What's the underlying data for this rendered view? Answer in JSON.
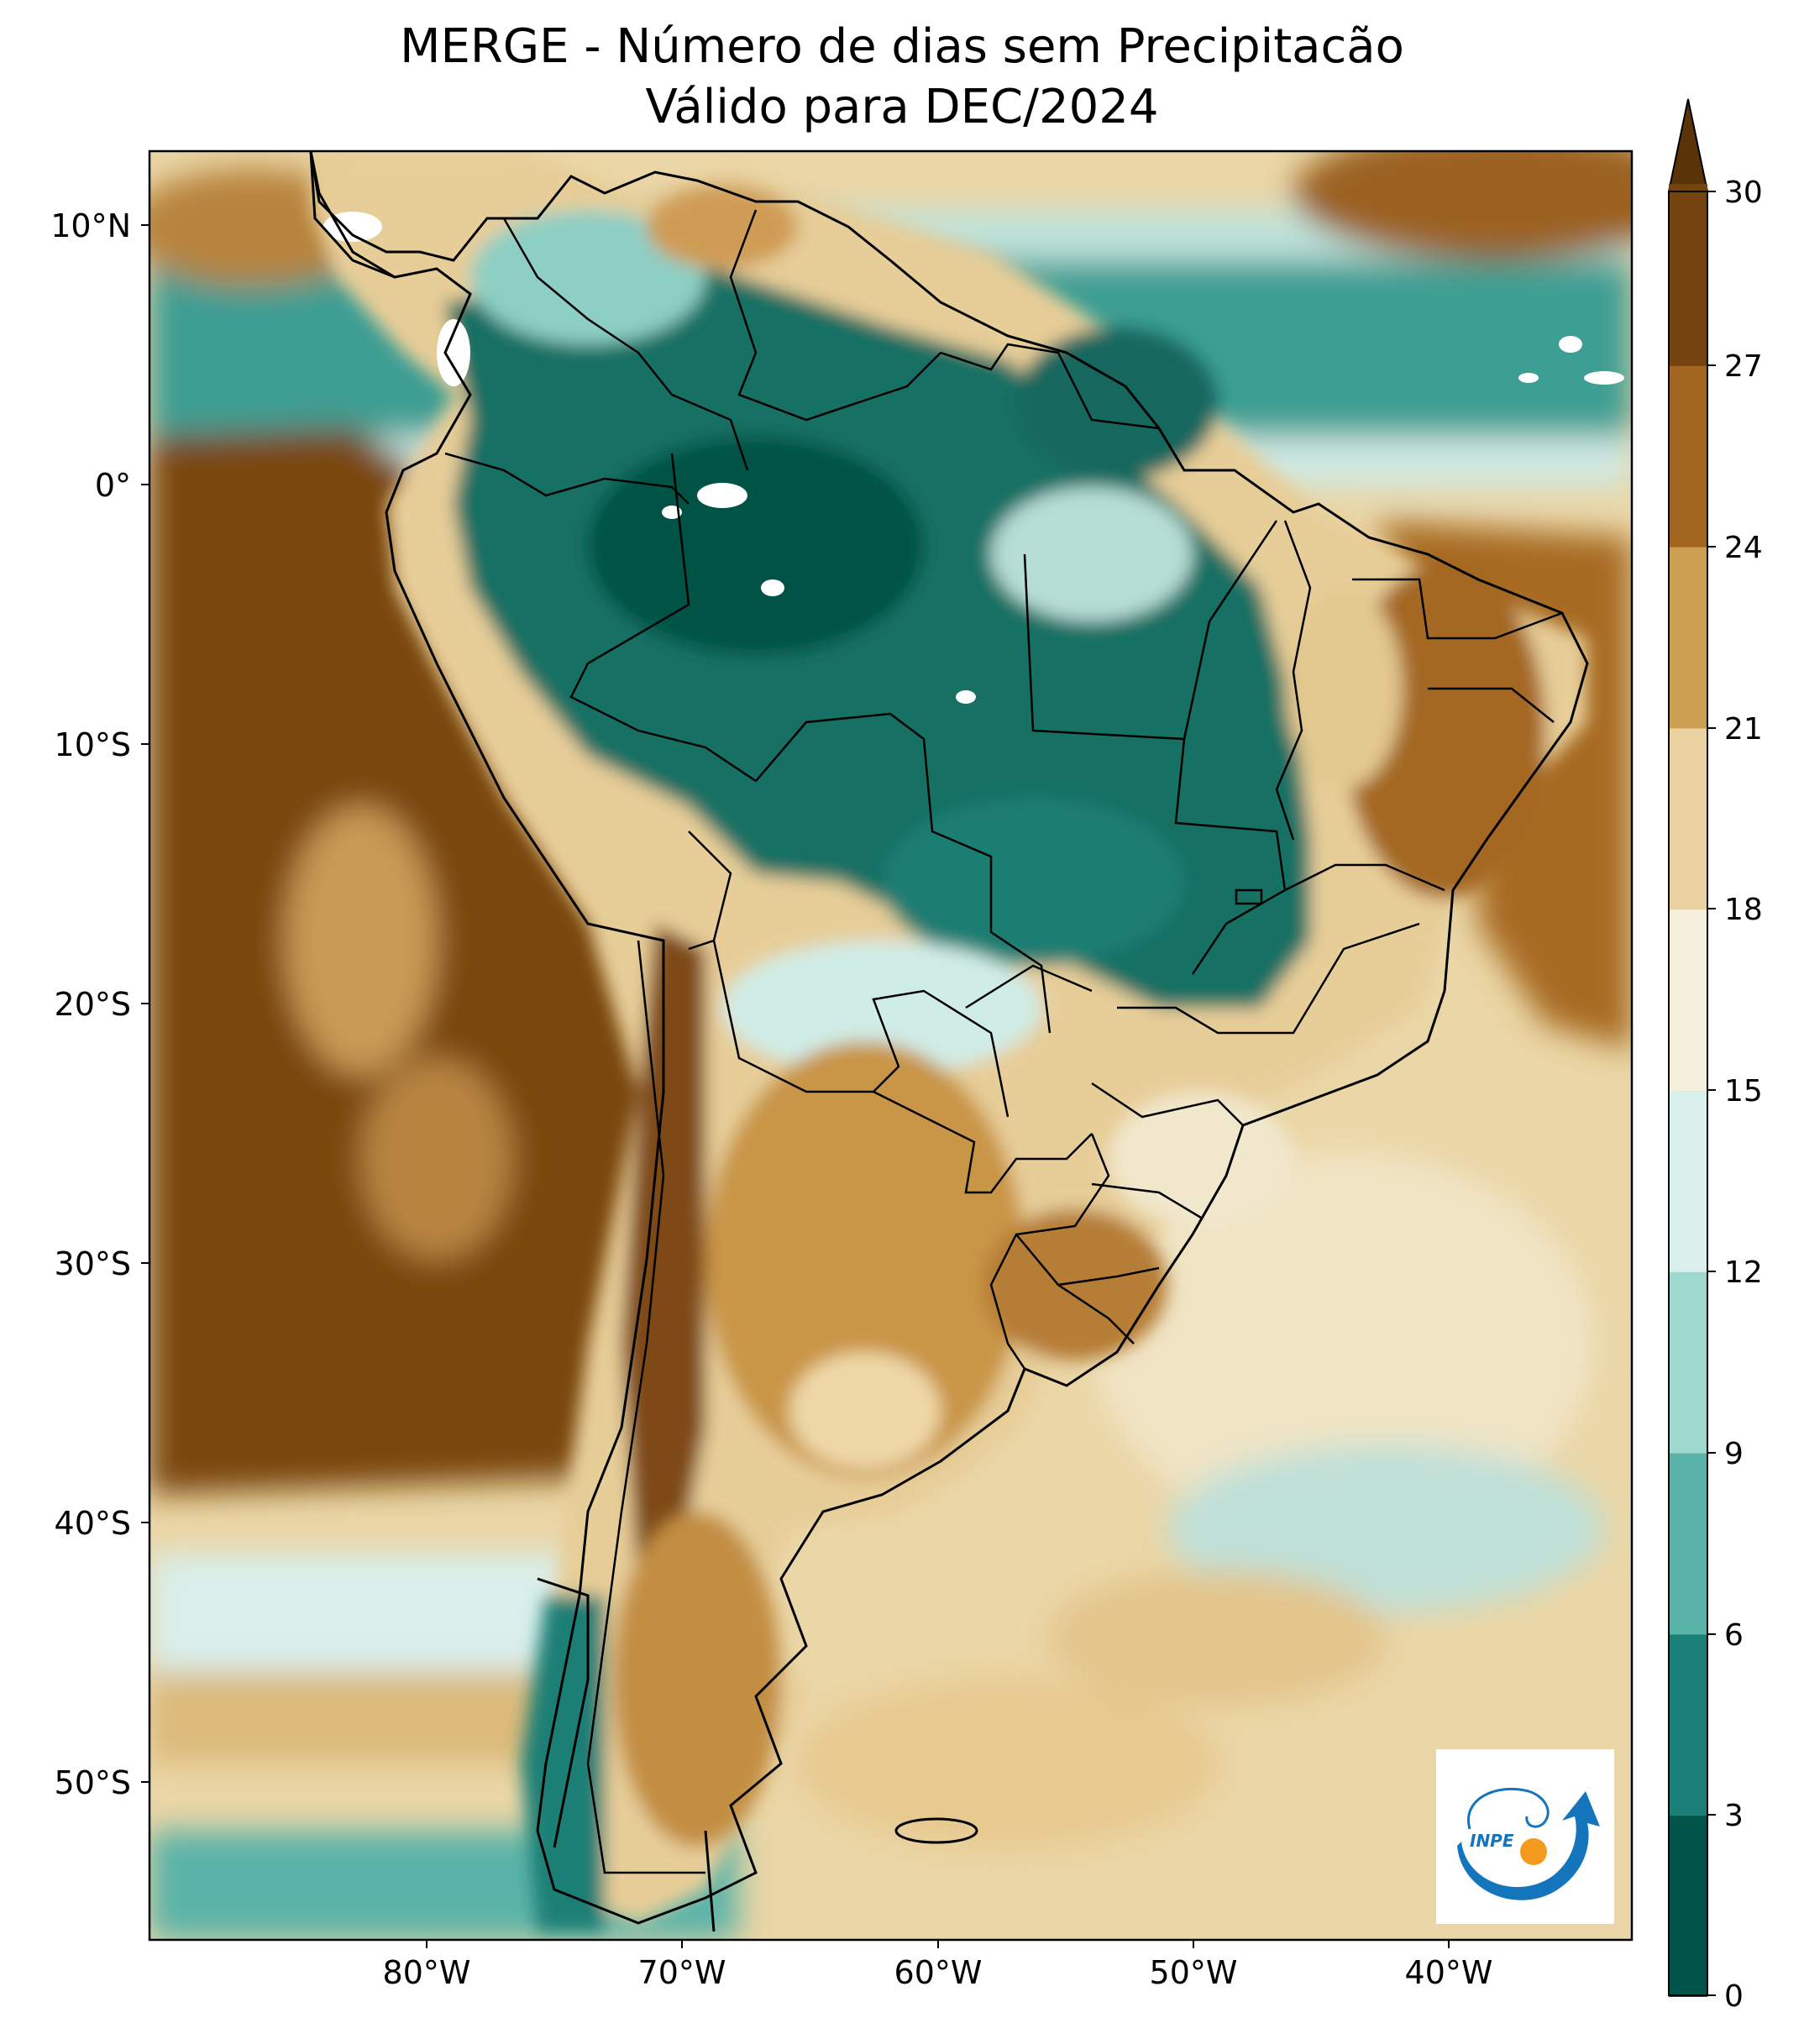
{
  "title": {
    "line1": "MERGE - Número de dias sem Precipitacão",
    "line2": "Válido para DEC/2024"
  },
  "map": {
    "region": "South America",
    "variable": "Número de dias sem Precipitacão",
    "period": "DEC/2024",
    "lon_range": [
      -90,
      -32
    ],
    "lat_range": [
      -56,
      13
    ],
    "lat_ticks": [
      "10°N",
      "0°",
      "10°S",
      "20°S",
      "30°S",
      "40°S",
      "50°S"
    ],
    "lon_ticks": [
      "80°W",
      "70°W",
      "60°W",
      "50°W",
      "40°W"
    ],
    "land_labels": []
  },
  "colorbar": {
    "levels": [
      "0",
      "3",
      "6",
      "9",
      "12",
      "15",
      "18",
      "21",
      "24",
      "27",
      "30"
    ],
    "colors": [
      "#01544a",
      "#1a7f76",
      "#5ab3a8",
      "#9fd8ce",
      "#d9efec",
      "#f5efdc",
      "#ead3a1",
      "#cd9f53",
      "#a36621",
      "#74430e"
    ],
    "extend_color": "#5a3309",
    "extend": "max"
  },
  "logo": {
    "text": "INPE",
    "colors": {
      "blue": "#1475bd",
      "orange": "#f39a1e"
    }
  },
  "colors": {
    "ocean_dry": "#7a470f",
    "ocean_mid": "#e8cf9b",
    "ocean_wet": "#2a8f84",
    "amazon": "#0f6a60",
    "argentina": "#c9974c",
    "northeast": "#a86b22",
    "border": "#000000"
  }
}
